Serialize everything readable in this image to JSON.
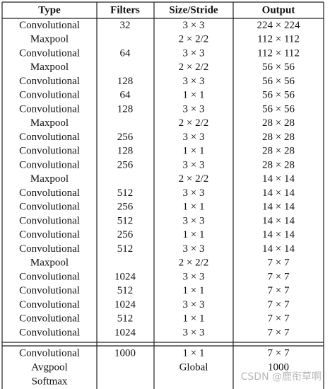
{
  "table": {
    "header": [
      "Type",
      "Filters",
      "Size/Stride",
      "Output"
    ],
    "rows": [
      [
        "Convolutional",
        "32",
        "3 × 3",
        "224 × 224"
      ],
      [
        "Maxpool",
        null,
        "2 × 2/2",
        "112 × 112"
      ],
      [
        "Convolutional",
        "64",
        "3 × 3",
        "112 × 112"
      ],
      [
        "Maxpool",
        null,
        "2 × 2/2",
        "56 × 56"
      ],
      [
        "Convolutional",
        "128",
        "3 × 3",
        "56 × 56"
      ],
      [
        "Convolutional",
        "64",
        "1 × 1",
        "56 × 56"
      ],
      [
        "Convolutional",
        "128",
        "3 × 3",
        "56 × 56"
      ],
      [
        "Maxpool",
        null,
        "2 × 2/2",
        "28 × 28"
      ],
      [
        "Convolutional",
        "256",
        "3 × 3",
        "28 × 28"
      ],
      [
        "Convolutional",
        "128",
        "1 × 1",
        "28 × 28"
      ],
      [
        "Convolutional",
        "256",
        "3 × 3",
        "28 × 28"
      ],
      [
        "Maxpool",
        null,
        "2 × 2/2",
        "14 × 14"
      ],
      [
        "Convolutional",
        "512",
        "3 × 3",
        "14 × 14"
      ],
      [
        "Convolutional",
        "256",
        "1 × 1",
        "14 × 14"
      ],
      [
        "Convolutional",
        "512",
        "3 × 3",
        "14 × 14"
      ],
      [
        "Convolutional",
        "256",
        "1 × 1",
        "14 × 14"
      ],
      [
        "Convolutional",
        "512",
        "3 × 3",
        "14 × 14"
      ],
      [
        "Maxpool",
        null,
        "2 × 2/2",
        "7 × 7"
      ],
      [
        "Convolutional",
        "1024",
        "3 × 3",
        "7 × 7"
      ],
      [
        "Convolutional",
        "512",
        "1 × 1",
        "7 × 7"
      ],
      [
        "Convolutional",
        "1024",
        "3 × 3",
        "7 × 7"
      ],
      [
        "Convolutional",
        "512",
        "1 × 1",
        "7 × 7"
      ],
      [
        "Convolutional",
        "1024",
        "3 × 3",
        "7 × 7"
      ]
    ],
    "footer_rows": [
      [
        "Convolutional",
        "1000",
        "1 × 1",
        "7 × 7"
      ],
      [
        "Avgpool",
        null,
        "Global",
        "1000"
      ],
      [
        "Softmax",
        null,
        null,
        null
      ]
    ]
  },
  "watermark": "CSDN @鹿衔草啊"
}
